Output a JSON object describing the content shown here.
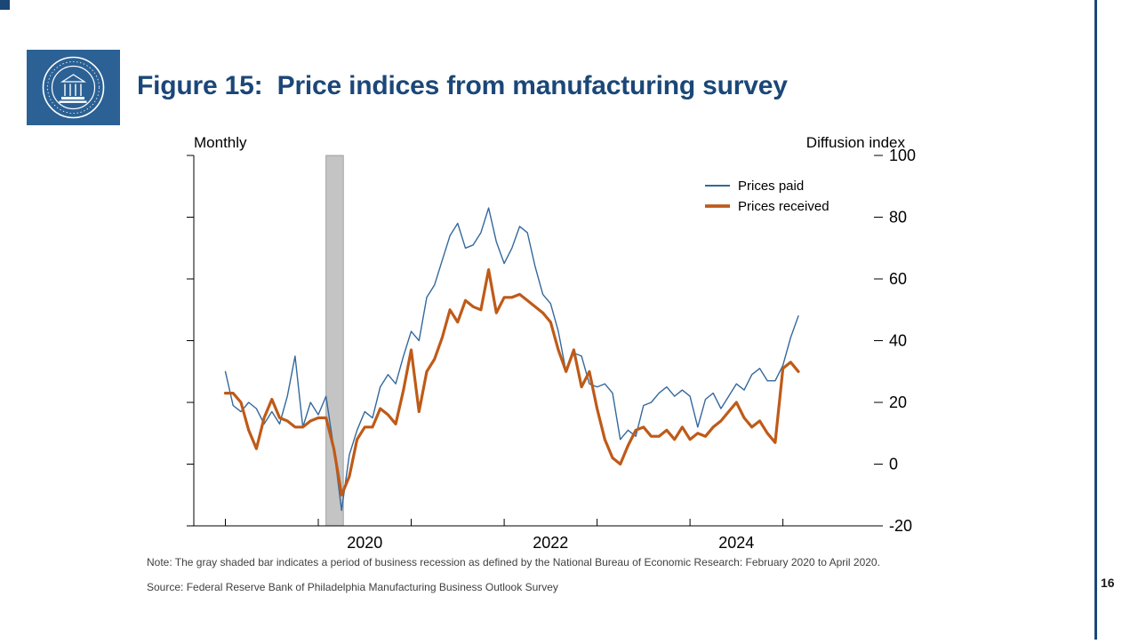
{
  "slide": {
    "title": "Figure 15:  Price indices from manufacturing survey",
    "page_number": "16",
    "note": "Note: The gray shaded bar indicates a period of business recession as defined by the National Bureau of Economic Research: February 2020 to April 2020.",
    "source": "Source: Federal Reserve Bank of Philadelphia Manufacturing Business Outlook Survey",
    "accent_color": "#1b4778",
    "logo_color": "#2b6195"
  },
  "chart_data": {
    "type": "line",
    "title_left": "Monthly",
    "title_right": "Diffusion index",
    "grid": false,
    "legend_position": "top-right-inside",
    "ylim": [
      -20,
      100
    ],
    "y_ticks": [
      100,
      80,
      60,
      40,
      20,
      0,
      -20
    ],
    "x_range_years": [
      2018.66,
      2025.98
    ],
    "x_tick_positions": [
      2019,
      2020,
      2021,
      2022,
      2023,
      2024,
      2025
    ],
    "x_label_positions": [
      2020.5,
      2022.5,
      2024.5
    ],
    "x_tick_labels": [
      "2020",
      "2022",
      "2024"
    ],
    "recession_band": {
      "start": 2020.083,
      "end": 2020.27,
      "color": "#c4c4c4",
      "border": "#8f8f8f",
      "label": "February 2020 to April 2020"
    },
    "months": [
      "2019-01",
      "2019-02",
      "2019-03",
      "2019-04",
      "2019-05",
      "2019-06",
      "2019-07",
      "2019-08",
      "2019-09",
      "2019-10",
      "2019-11",
      "2019-12",
      "2020-01",
      "2020-02",
      "2020-03",
      "2020-04",
      "2020-05",
      "2020-06",
      "2020-07",
      "2020-08",
      "2020-09",
      "2020-10",
      "2020-11",
      "2020-12",
      "2021-01",
      "2021-02",
      "2021-03",
      "2021-04",
      "2021-05",
      "2021-06",
      "2021-07",
      "2021-08",
      "2021-09",
      "2021-10",
      "2021-11",
      "2021-12",
      "2022-01",
      "2022-02",
      "2022-03",
      "2022-04",
      "2022-05",
      "2022-06",
      "2022-07",
      "2022-08",
      "2022-09",
      "2022-10",
      "2022-11",
      "2022-12",
      "2023-01",
      "2023-02",
      "2023-03",
      "2023-04",
      "2023-05",
      "2023-06",
      "2023-07",
      "2023-08",
      "2023-09",
      "2023-10",
      "2023-11",
      "2023-12",
      "2024-01",
      "2024-02",
      "2024-03",
      "2024-04",
      "2024-05",
      "2024-06",
      "2024-07",
      "2024-08",
      "2024-09",
      "2024-10",
      "2024-11",
      "2024-12",
      "2025-01",
      "2025-02",
      "2025-03"
    ],
    "series": [
      {
        "name": "Prices paid",
        "color": "#33689c",
        "stroke_width": 1.4,
        "values": [
          30,
          19,
          17,
          20,
          18,
          13,
          17,
          13,
          22,
          35,
          12,
          20,
          16,
          22,
          5,
          -15,
          3,
          11,
          17,
          15,
          25,
          29,
          26,
          35,
          43,
          40,
          54,
          58,
          66,
          74,
          78,
          70,
          71,
          75,
          83,
          72,
          65,
          70,
          77,
          75,
          64,
          55,
          52,
          43,
          30,
          36,
          35,
          26,
          25,
          26,
          23,
          8,
          11,
          9,
          19,
          20,
          23,
          25,
          22,
          24,
          22,
          12,
          21,
          23,
          18,
          22,
          26,
          24,
          29,
          31,
          27,
          27,
          32,
          41,
          48
        ]
      },
      {
        "name": "Prices received",
        "color": "#bf5a18",
        "stroke_width": 3.2,
        "values": [
          23,
          23,
          20,
          11,
          5,
          15,
          21,
          15,
          14,
          12,
          12,
          14,
          15,
          15,
          5,
          -10,
          -4,
          8,
          12,
          12,
          18,
          16,
          13,
          24,
          37,
          17,
          30,
          34,
          41,
          50,
          46,
          53,
          51,
          50,
          63,
          49,
          54,
          54,
          55,
          53,
          51,
          49,
          46,
          37,
          30,
          37,
          25,
          30,
          18,
          8,
          2,
          0,
          6,
          11,
          12,
          9,
          9,
          11,
          8,
          12,
          8,
          10,
          9,
          12,
          14,
          17,
          20,
          15,
          12,
          14,
          10,
          7,
          31,
          33,
          30
        ]
      }
    ]
  }
}
